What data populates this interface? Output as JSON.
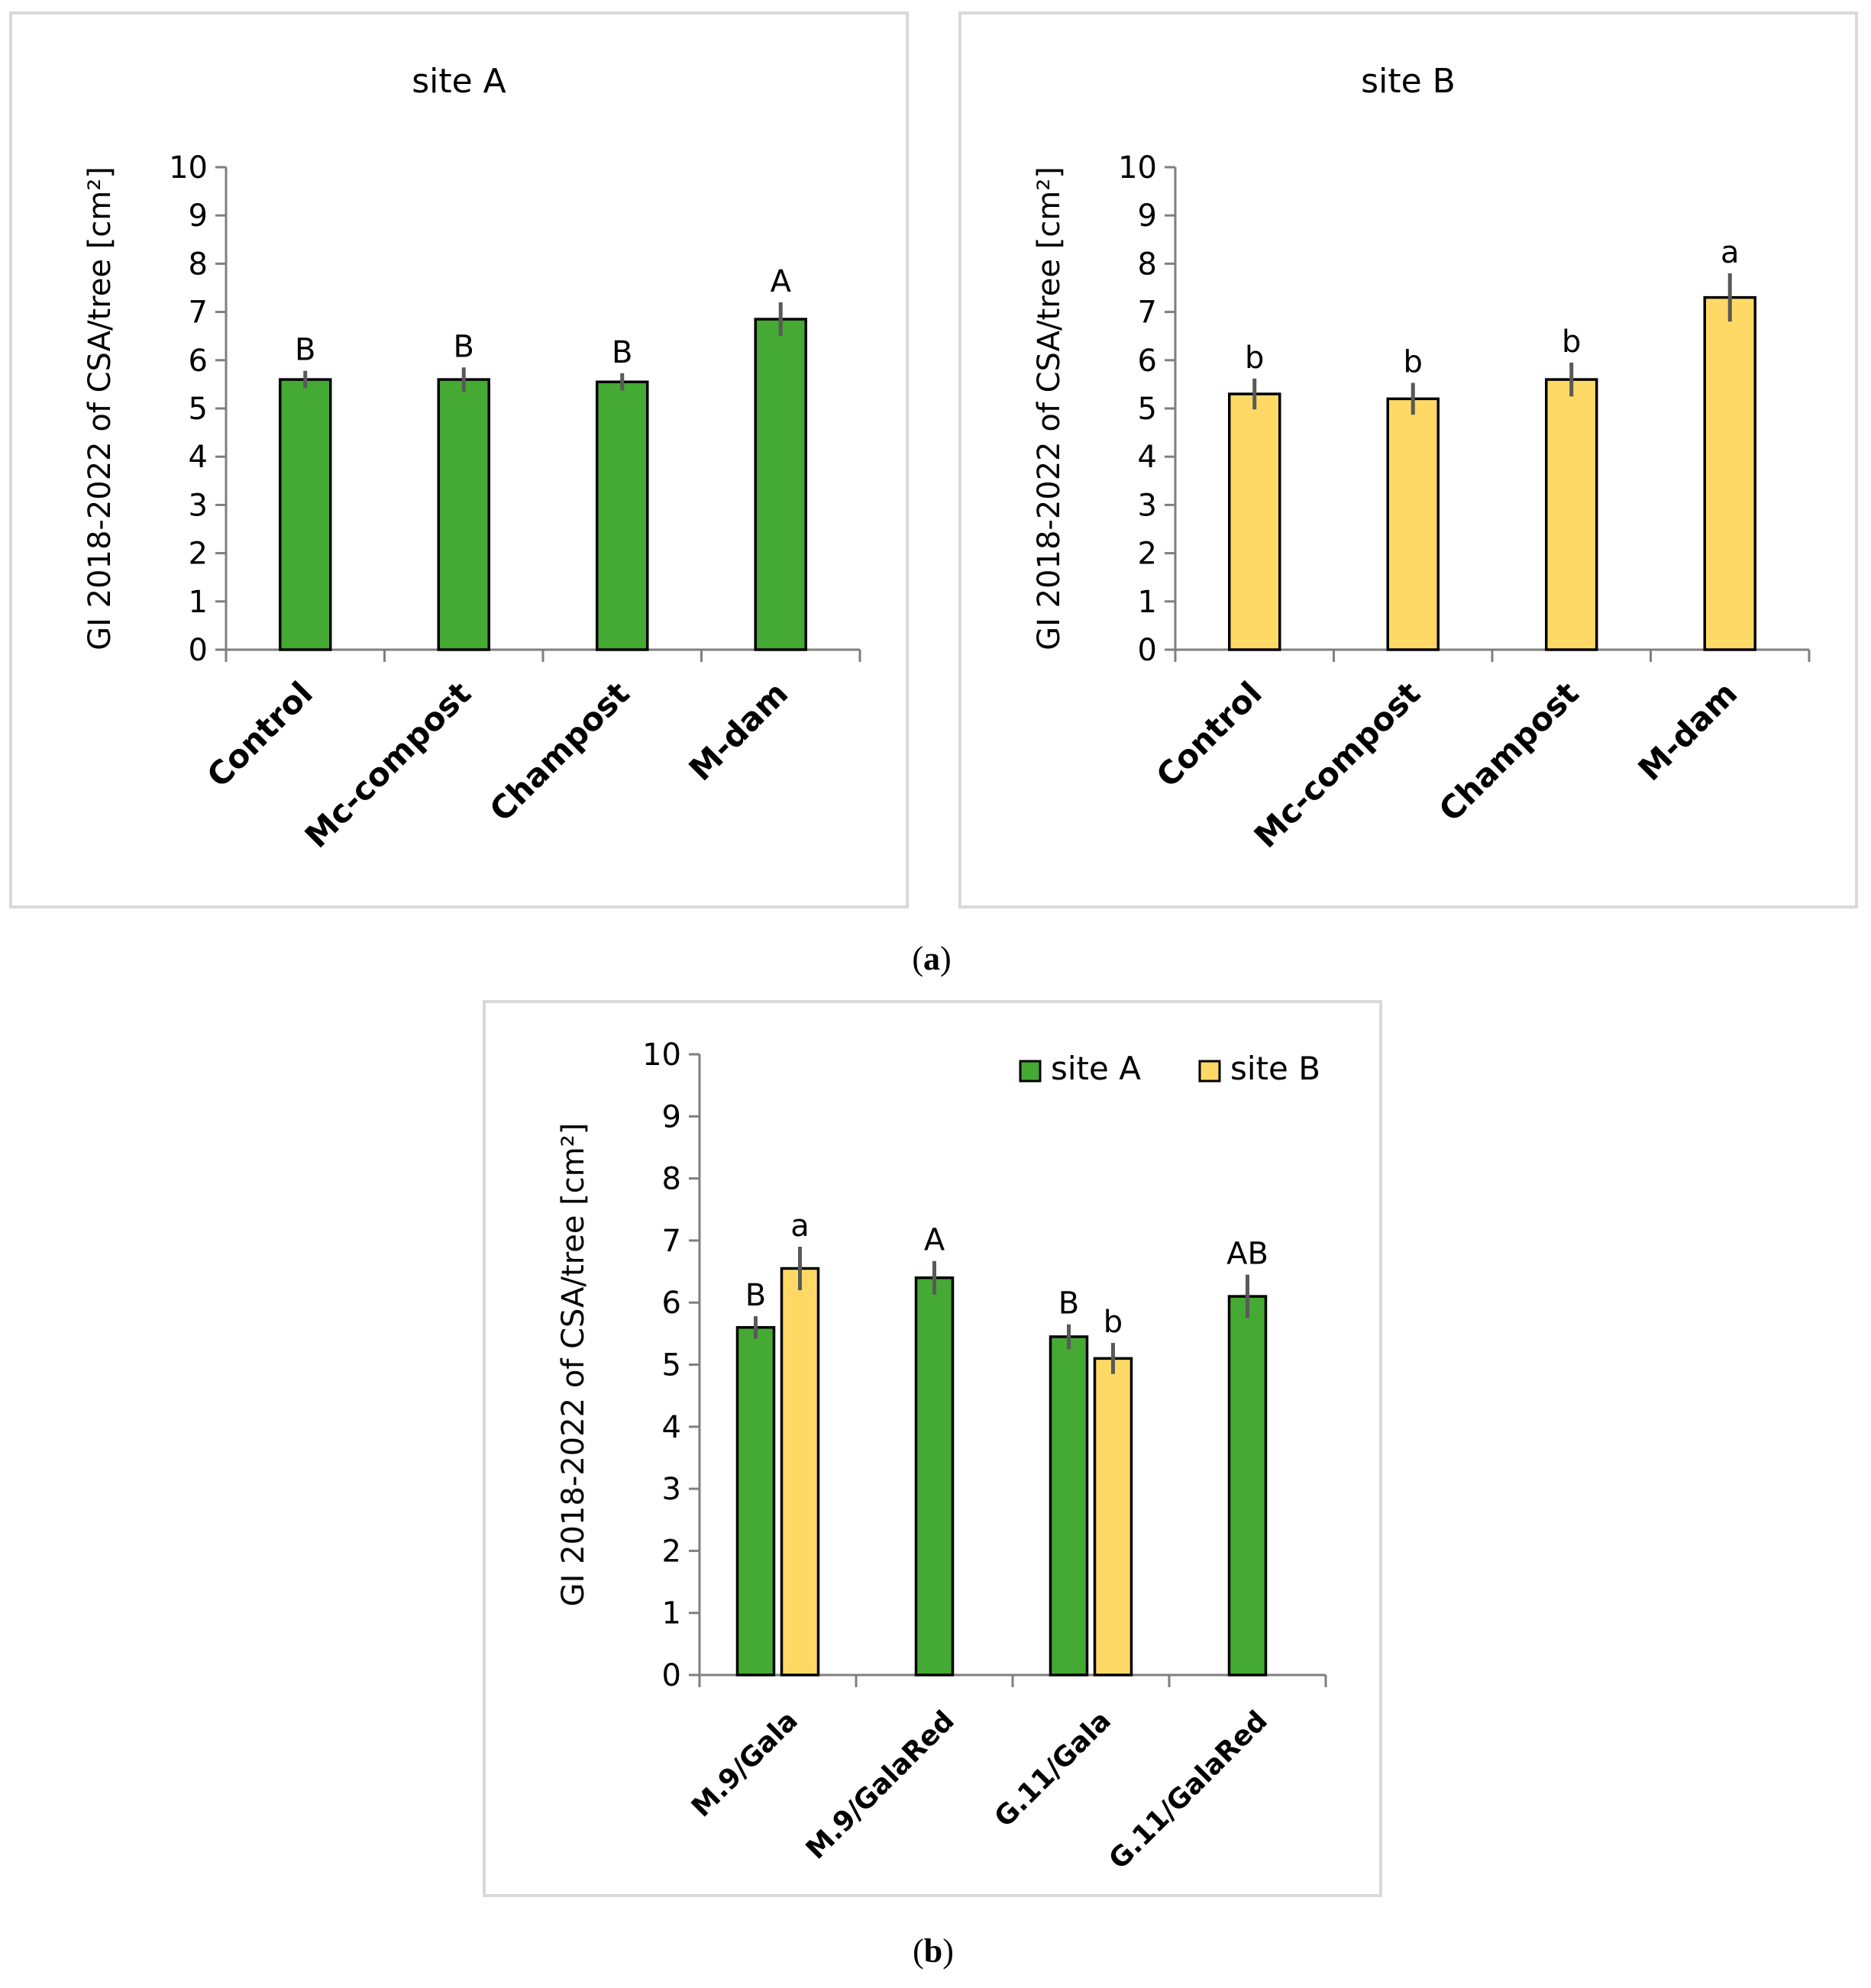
{
  "chart_data": [
    {
      "type": "bar",
      "title": "site A",
      "ylabel": "GI 2018-2022 of CSA/tree [cm²]",
      "ylim": [
        0,
        10
      ],
      "yticks": [
        "0",
        "1",
        "2",
        "3",
        "4",
        "5",
        "6",
        "7",
        "8",
        "9",
        "10"
      ],
      "categories": [
        "Control",
        "Mc-compost",
        "Champost",
        "M-dam"
      ],
      "values": [
        5.6,
        5.6,
        5.55,
        6.85
      ],
      "errors": [
        0.18,
        0.25,
        0.18,
        0.35
      ],
      "letters": [
        "B",
        "B",
        "B",
        "A"
      ],
      "color": "#44aa33"
    },
    {
      "type": "bar",
      "title": "site B",
      "ylabel": "GI 2018-2022 of CSA/tree [cm²]",
      "ylim": [
        0,
        10
      ],
      "yticks": [
        "0",
        "1",
        "2",
        "3",
        "4",
        "5",
        "6",
        "7",
        "8",
        "9",
        "10"
      ],
      "categories": [
        "Control",
        "Mc-compost",
        "Champost",
        "M-dam"
      ],
      "values": [
        5.3,
        5.2,
        5.6,
        7.3
      ],
      "errors": [
        0.32,
        0.33,
        0.35,
        0.5
      ],
      "letters": [
        "b",
        "b",
        "b",
        "a"
      ],
      "color": "#ffd966"
    },
    {
      "type": "bar",
      "title": "",
      "ylabel": "GI 2018-2022 of CSA/tree  [cm²]",
      "ylim": [
        0,
        10
      ],
      "yticks": [
        "0",
        "1",
        "2",
        "3",
        "4",
        "5",
        "6",
        "7",
        "8",
        "9",
        "10"
      ],
      "categories": [
        "M.9/Gala",
        "M.9/GalaRed",
        "G.11/Gala",
        "G.11/GalaRed"
      ],
      "legend": {
        "placement": "top-right"
      },
      "series": [
        {
          "name": "site A",
          "color": "#44aa33",
          "values": [
            5.6,
            6.4,
            5.45,
            6.1
          ],
          "errors": [
            0.18,
            0.27,
            0.2,
            0.35
          ],
          "letters": [
            "B",
            "A",
            "B",
            "AB"
          ]
        },
        {
          "name": "site B",
          "color": "#ffd966",
          "values": [
            6.55,
            null,
            5.1,
            null
          ],
          "errors": [
            0.35,
            null,
            0.25,
            null
          ],
          "letters": [
            "a",
            "",
            "b",
            ""
          ]
        }
      ]
    }
  ],
  "captions": {
    "a": "a",
    "b": "b"
  }
}
